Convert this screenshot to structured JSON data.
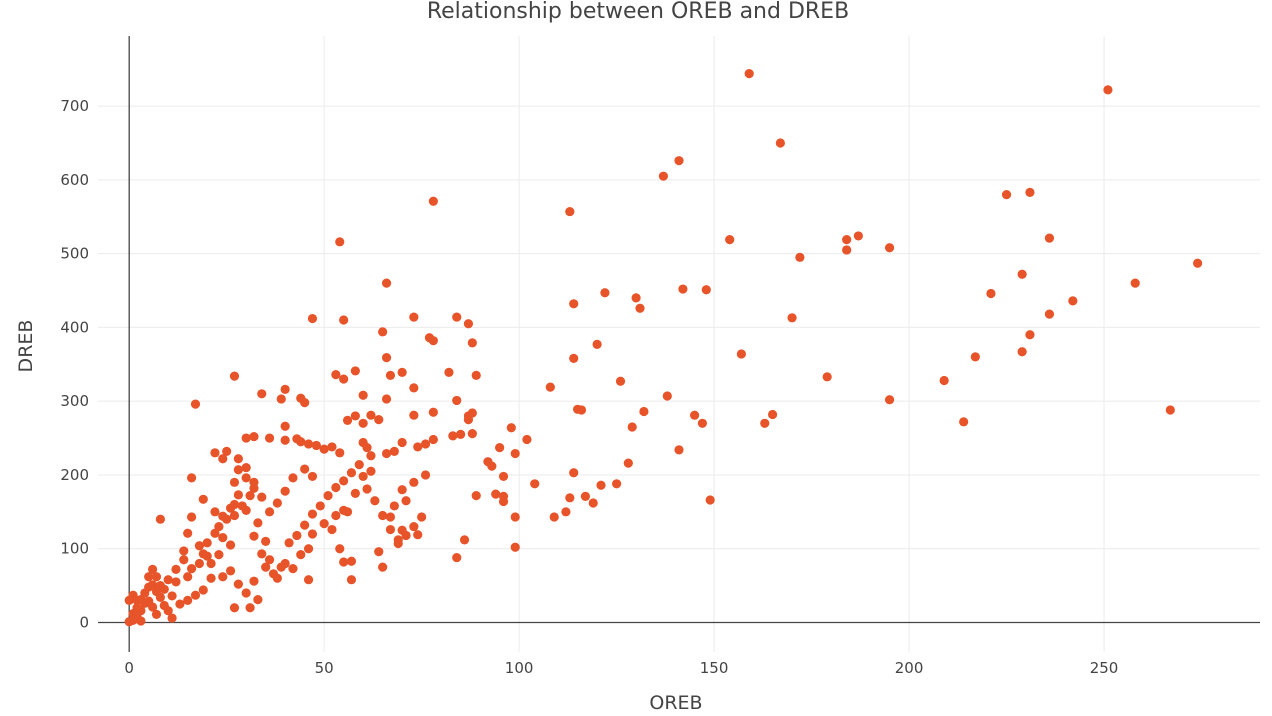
{
  "chart_data": {
    "type": "scatter",
    "title": "Relationship between OREB and DREB",
    "xlabel": "OREB",
    "ylabel": "DREB",
    "xlim": [
      -8,
      290
    ],
    "ylim": [
      -40,
      795
    ],
    "x_ticks": [
      0,
      50,
      100,
      150,
      200,
      250
    ],
    "y_ticks": [
      0,
      100,
      200,
      300,
      400,
      500,
      600,
      700
    ],
    "x_tick_labels": [
      "0",
      "50",
      "100",
      "150",
      "200",
      "250"
    ],
    "y_tick_labels": [
      "0",
      "100",
      "200",
      "300",
      "400",
      "500",
      "600",
      "700"
    ],
    "grid": true,
    "marker_color": "#e8542a",
    "series": [
      {
        "points": [
          [
            159,
            744
          ],
          [
            251,
            722
          ],
          [
            167,
            650
          ],
          [
            141,
            626
          ],
          [
            137,
            605
          ],
          [
            231,
            583
          ],
          [
            225,
            580
          ],
          [
            78,
            571
          ],
          [
            113,
            557
          ],
          [
            184,
            519
          ],
          [
            154,
            519
          ],
          [
            187,
            524
          ],
          [
            236,
            521
          ],
          [
            195,
            508
          ],
          [
            184,
            505
          ],
          [
            54,
            516
          ],
          [
            172,
            495
          ],
          [
            274,
            487
          ],
          [
            229,
            472
          ],
          [
            258,
            460
          ],
          [
            66,
            460
          ],
          [
            142,
            452
          ],
          [
            148,
            451
          ],
          [
            122,
            447
          ],
          [
            221,
            446
          ],
          [
            130,
            440
          ],
          [
            131,
            426
          ],
          [
            242,
            436
          ],
          [
            114,
            432
          ],
          [
            236,
            418
          ],
          [
            170,
            413
          ],
          [
            47,
            412
          ],
          [
            73,
            414
          ],
          [
            84,
            414
          ],
          [
            55,
            410
          ],
          [
            87,
            405
          ],
          [
            231,
            390
          ],
          [
            65,
            394
          ],
          [
            77,
            386
          ],
          [
            78,
            382
          ],
          [
            88,
            379
          ],
          [
            120,
            377
          ],
          [
            157,
            364
          ],
          [
            229,
            367
          ],
          [
            217,
            360
          ],
          [
            114,
            358
          ],
          [
            66,
            359
          ],
          [
            58,
            341
          ],
          [
            70,
            339
          ],
          [
            82,
            339
          ],
          [
            53,
            336
          ],
          [
            67,
            335
          ],
          [
            89,
            335
          ],
          [
            55,
            330
          ],
          [
            27,
            334
          ],
          [
            179,
            333
          ],
          [
            126,
            327
          ],
          [
            209,
            328
          ],
          [
            108,
            319
          ],
          [
            73,
            318
          ],
          [
            40,
            316
          ],
          [
            34,
            310
          ],
          [
            44,
            304
          ],
          [
            39,
            303
          ],
          [
            45,
            298
          ],
          [
            17,
            296
          ],
          [
            60,
            308
          ],
          [
            138,
            307
          ],
          [
            195,
            302
          ],
          [
            84,
            301
          ],
          [
            66,
            303
          ],
          [
            267,
            288
          ],
          [
            115,
            289
          ],
          [
            116,
            288
          ],
          [
            88,
            284
          ],
          [
            78,
            285
          ],
          [
            132,
            286
          ],
          [
            145,
            281
          ],
          [
            165,
            282
          ],
          [
            214,
            272
          ],
          [
            163,
            270
          ],
          [
            147,
            270
          ],
          [
            87,
            280
          ],
          [
            62,
            281
          ],
          [
            58,
            280
          ],
          [
            56,
            274
          ],
          [
            60,
            270
          ],
          [
            64,
            275
          ],
          [
            73,
            281
          ],
          [
            87,
            275
          ],
          [
            98,
            264
          ],
          [
            129,
            265
          ],
          [
            40,
            266
          ],
          [
            36,
            250
          ],
          [
            30,
            250
          ],
          [
            32,
            252
          ],
          [
            43,
            249
          ],
          [
            40,
            247
          ],
          [
            44,
            245
          ],
          [
            46,
            242
          ],
          [
            48,
            240
          ],
          [
            50,
            235
          ],
          [
            52,
            238
          ],
          [
            54,
            230
          ],
          [
            60,
            244
          ],
          [
            61,
            237
          ],
          [
            62,
            226
          ],
          [
            66,
            229
          ],
          [
            68,
            232
          ],
          [
            70,
            244
          ],
          [
            74,
            238
          ],
          [
            76,
            242
          ],
          [
            78,
            248
          ],
          [
            83,
            253
          ],
          [
            85,
            255
          ],
          [
            88,
            256
          ],
          [
            92,
            218
          ],
          [
            95,
            237
          ],
          [
            102,
            248
          ],
          [
            96,
            198
          ],
          [
            93,
            212
          ],
          [
            99,
            229
          ],
          [
            128,
            216
          ],
          [
            141,
            234
          ],
          [
            114,
            203
          ],
          [
            104,
            188
          ],
          [
            121,
            186
          ],
          [
            125,
            188
          ],
          [
            117,
            171
          ],
          [
            113,
            169
          ],
          [
            94,
            174
          ],
          [
            96,
            171
          ],
          [
            96,
            164
          ],
          [
            119,
            162
          ],
          [
            149,
            166
          ],
          [
            109,
            143
          ],
          [
            112,
            150
          ],
          [
            99,
            143
          ],
          [
            99,
            102
          ],
          [
            84,
            88
          ],
          [
            86,
            112
          ],
          [
            89,
            172
          ],
          [
            76,
            200
          ],
          [
            73,
            190
          ],
          [
            70,
            180
          ],
          [
            71,
            165
          ],
          [
            68,
            158
          ],
          [
            67,
            143
          ],
          [
            70,
            125
          ],
          [
            74,
            119
          ],
          [
            69,
            112
          ],
          [
            64,
            96
          ],
          [
            65,
            75
          ],
          [
            57,
            83
          ],
          [
            57,
            58
          ],
          [
            55,
            82
          ],
          [
            54,
            100
          ],
          [
            52,
            126
          ],
          [
            53,
            145
          ],
          [
            55,
            152
          ],
          [
            56,
            150
          ],
          [
            50,
            134
          ],
          [
            47,
            120
          ],
          [
            46,
            100
          ],
          [
            44,
            92
          ],
          [
            46,
            58
          ],
          [
            42,
            73
          ],
          [
            40,
            80
          ],
          [
            38,
            60
          ],
          [
            36,
            85
          ],
          [
            34,
            93
          ],
          [
            35,
            110
          ],
          [
            32,
            117
          ],
          [
            33,
            135
          ],
          [
            30,
            152
          ],
          [
            31,
            172
          ],
          [
            32,
            190
          ],
          [
            30,
            210
          ],
          [
            28,
            222
          ],
          [
            25,
            232
          ],
          [
            22,
            230
          ],
          [
            24,
            222
          ],
          [
            27,
            190
          ],
          [
            28,
            173
          ],
          [
            29,
            158
          ],
          [
            27,
            145
          ],
          [
            25,
            140
          ],
          [
            23,
            130
          ],
          [
            22,
            121
          ],
          [
            20,
            108
          ],
          [
            18,
            104
          ],
          [
            19,
            93
          ],
          [
            18,
            80
          ],
          [
            16,
            73
          ],
          [
            15,
            62
          ],
          [
            12,
            55
          ],
          [
            10,
            58
          ],
          [
            8,
            50
          ],
          [
            7,
            62
          ],
          [
            6,
            72
          ],
          [
            5,
            62
          ],
          [
            6,
            51
          ],
          [
            7,
            42
          ],
          [
            8,
            34
          ],
          [
            9,
            23
          ],
          [
            10,
            16
          ],
          [
            11,
            6
          ],
          [
            4,
            26
          ],
          [
            3,
            16
          ],
          [
            2,
            8
          ],
          [
            1,
            3
          ],
          [
            0,
            1
          ],
          [
            1,
            12
          ],
          [
            2,
            20
          ],
          [
            3,
            31
          ],
          [
            4,
            40
          ],
          [
            5,
            48
          ],
          [
            5,
            29
          ],
          [
            6,
            21
          ],
          [
            7,
            11
          ],
          [
            3,
            2
          ],
          [
            2,
            30
          ],
          [
            1,
            37
          ],
          [
            0,
            30
          ],
          [
            8,
            140
          ],
          [
            14,
            97
          ],
          [
            15,
            121
          ],
          [
            16,
            143
          ],
          [
            16,
            196
          ],
          [
            19,
            167
          ],
          [
            22,
            150
          ],
          [
            21,
            80
          ],
          [
            20,
            90
          ],
          [
            24,
            115
          ],
          [
            26,
            105
          ],
          [
            24,
            62
          ],
          [
            26,
            70
          ],
          [
            28,
            52
          ],
          [
            27,
            20
          ],
          [
            31,
            20
          ],
          [
            33,
            31
          ],
          [
            30,
            40
          ],
          [
            32,
            56
          ],
          [
            35,
            75
          ],
          [
            37,
            66
          ],
          [
            39,
            75
          ],
          [
            41,
            108
          ],
          [
            43,
            118
          ],
          [
            45,
            132
          ],
          [
            47,
            147
          ],
          [
            49,
            158
          ],
          [
            51,
            172
          ],
          [
            53,
            183
          ],
          [
            55,
            192
          ],
          [
            57,
            203
          ],
          [
            59,
            214
          ],
          [
            61,
            181
          ],
          [
            63,
            165
          ],
          [
            65,
            145
          ],
          [
            67,
            126
          ],
          [
            69,
            107
          ],
          [
            71,
            118
          ],
          [
            73,
            130
          ],
          [
            75,
            143
          ],
          [
            58,
            175
          ],
          [
            60,
            198
          ],
          [
            62,
            205
          ],
          [
            47,
            198
          ],
          [
            45,
            208
          ],
          [
            42,
            196
          ],
          [
            40,
            178
          ],
          [
            38,
            162
          ],
          [
            36,
            150
          ],
          [
            34,
            170
          ],
          [
            32,
            182
          ],
          [
            30,
            196
          ],
          [
            28,
            207
          ],
          [
            27,
            160
          ],
          [
            26,
            155
          ],
          [
            24,
            144
          ],
          [
            23,
            92
          ],
          [
            21,
            60
          ],
          [
            19,
            44
          ],
          [
            17,
            37
          ],
          [
            15,
            30
          ],
          [
            13,
            25
          ],
          [
            11,
            36
          ],
          [
            9,
            45
          ],
          [
            12,
            72
          ],
          [
            14,
            85
          ]
        ]
      }
    ]
  }
}
